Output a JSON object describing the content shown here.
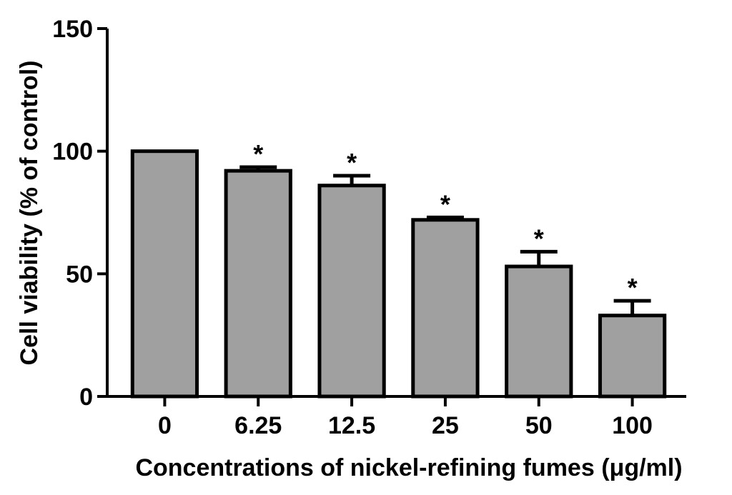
{
  "chart_data": {
    "type": "bar",
    "categories": [
      "0",
      "6.25",
      "12.5",
      "25",
      "50",
      "100"
    ],
    "values": [
      100,
      92,
      86,
      72,
      53,
      33
    ],
    "errors": [
      0,
      1.5,
      4,
      1,
      6,
      6
    ],
    "significance": [
      "",
      "*",
      "*",
      "*",
      "*",
      "*"
    ],
    "xlabel": "Concentrations of nickel-refining fumes (μg/ml)",
    "ylabel": "Cell viability (% of control)",
    "ylim": [
      0,
      150
    ],
    "yticks": [
      0,
      50,
      100,
      150
    ],
    "colors": {
      "bar_fill": "#a0a0a0",
      "stroke": "#000000"
    }
  }
}
